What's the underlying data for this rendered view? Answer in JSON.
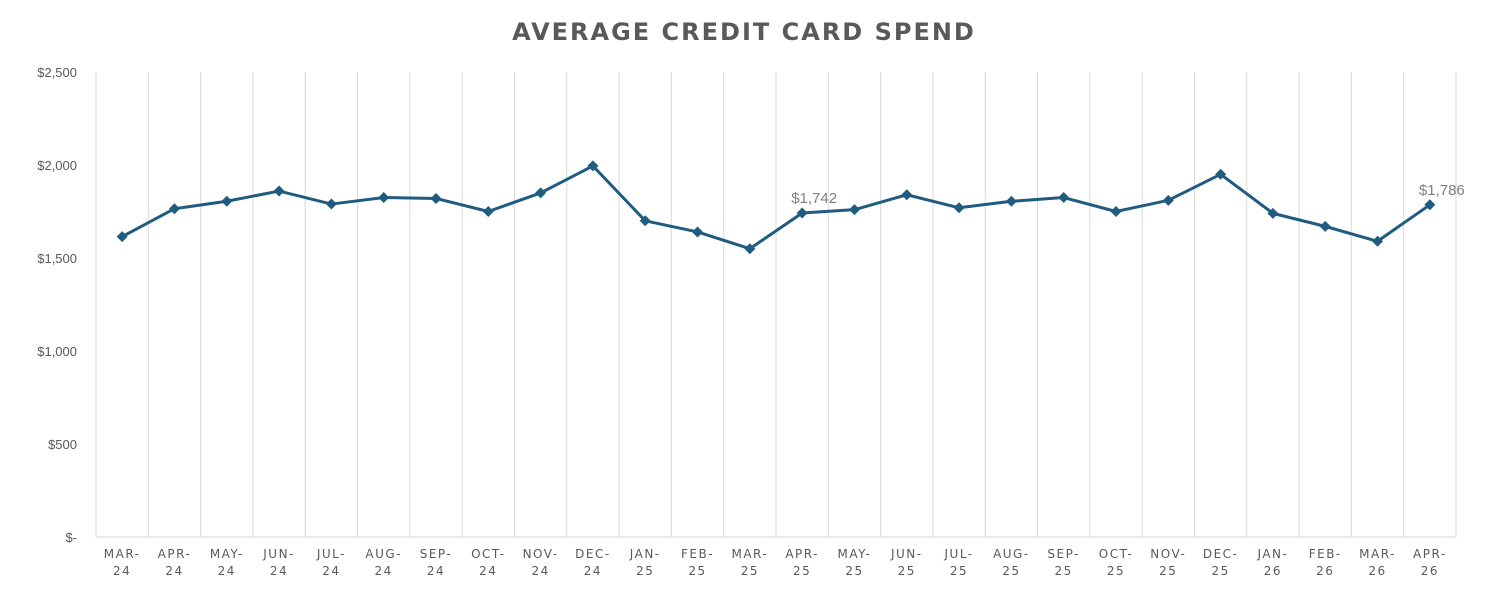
{
  "chart_data": {
    "type": "line",
    "title": "AVERAGE CREDIT CARD SPEND",
    "xlabel": "",
    "ylabel": "",
    "ylim": [
      0,
      2500
    ],
    "yticks": [
      0,
      500,
      1000,
      1500,
      2000,
      2500
    ],
    "ytick_labels": [
      "$-",
      "$500",
      "$1,000",
      "$1,500",
      "$2,000",
      "$2,500"
    ],
    "categories": [
      [
        "MAR-",
        "24"
      ],
      [
        "APR-",
        "24"
      ],
      [
        "MAY-",
        "24"
      ],
      [
        "JUN-",
        "24"
      ],
      [
        "JUL-",
        "24"
      ],
      [
        "AUG-",
        "24"
      ],
      [
        "SEP-",
        "24"
      ],
      [
        "OCT-",
        "24"
      ],
      [
        "NOV-",
        "24"
      ],
      [
        "DEC-",
        "24"
      ],
      [
        "JAN-",
        "25"
      ],
      [
        "FEB-",
        "25"
      ],
      [
        "MAR-",
        "25"
      ],
      [
        "APR-",
        "25"
      ],
      [
        "MAY-",
        "25"
      ],
      [
        "JUN-",
        "25"
      ],
      [
        "JUL-",
        "25"
      ],
      [
        "AUG-",
        "25"
      ],
      [
        "SEP-",
        "25"
      ],
      [
        "OCT-",
        "25"
      ],
      [
        "NOV-",
        "25"
      ],
      [
        "DEC-",
        "25"
      ],
      [
        "JAN-",
        "26"
      ],
      [
        "FEB-",
        "26"
      ],
      [
        "MAR-",
        "26"
      ],
      [
        "APR-",
        "26"
      ]
    ],
    "series": [
      {
        "values": [
          1615,
          1765,
          1805,
          1860,
          1790,
          1825,
          1820,
          1750,
          1850,
          1995,
          1700,
          1640,
          1550,
          1742,
          1760,
          1840,
          1770,
          1805,
          1825,
          1750,
          1810,
          1950,
          1740,
          1670,
          1590,
          1786
        ],
        "color": "#1f5c7f"
      }
    ],
    "data_labels": [
      {
        "index": 13,
        "text": "$1,742"
      },
      {
        "index": 25,
        "text": "$1,786"
      }
    ],
    "grid": "vertical",
    "legend": "none"
  }
}
